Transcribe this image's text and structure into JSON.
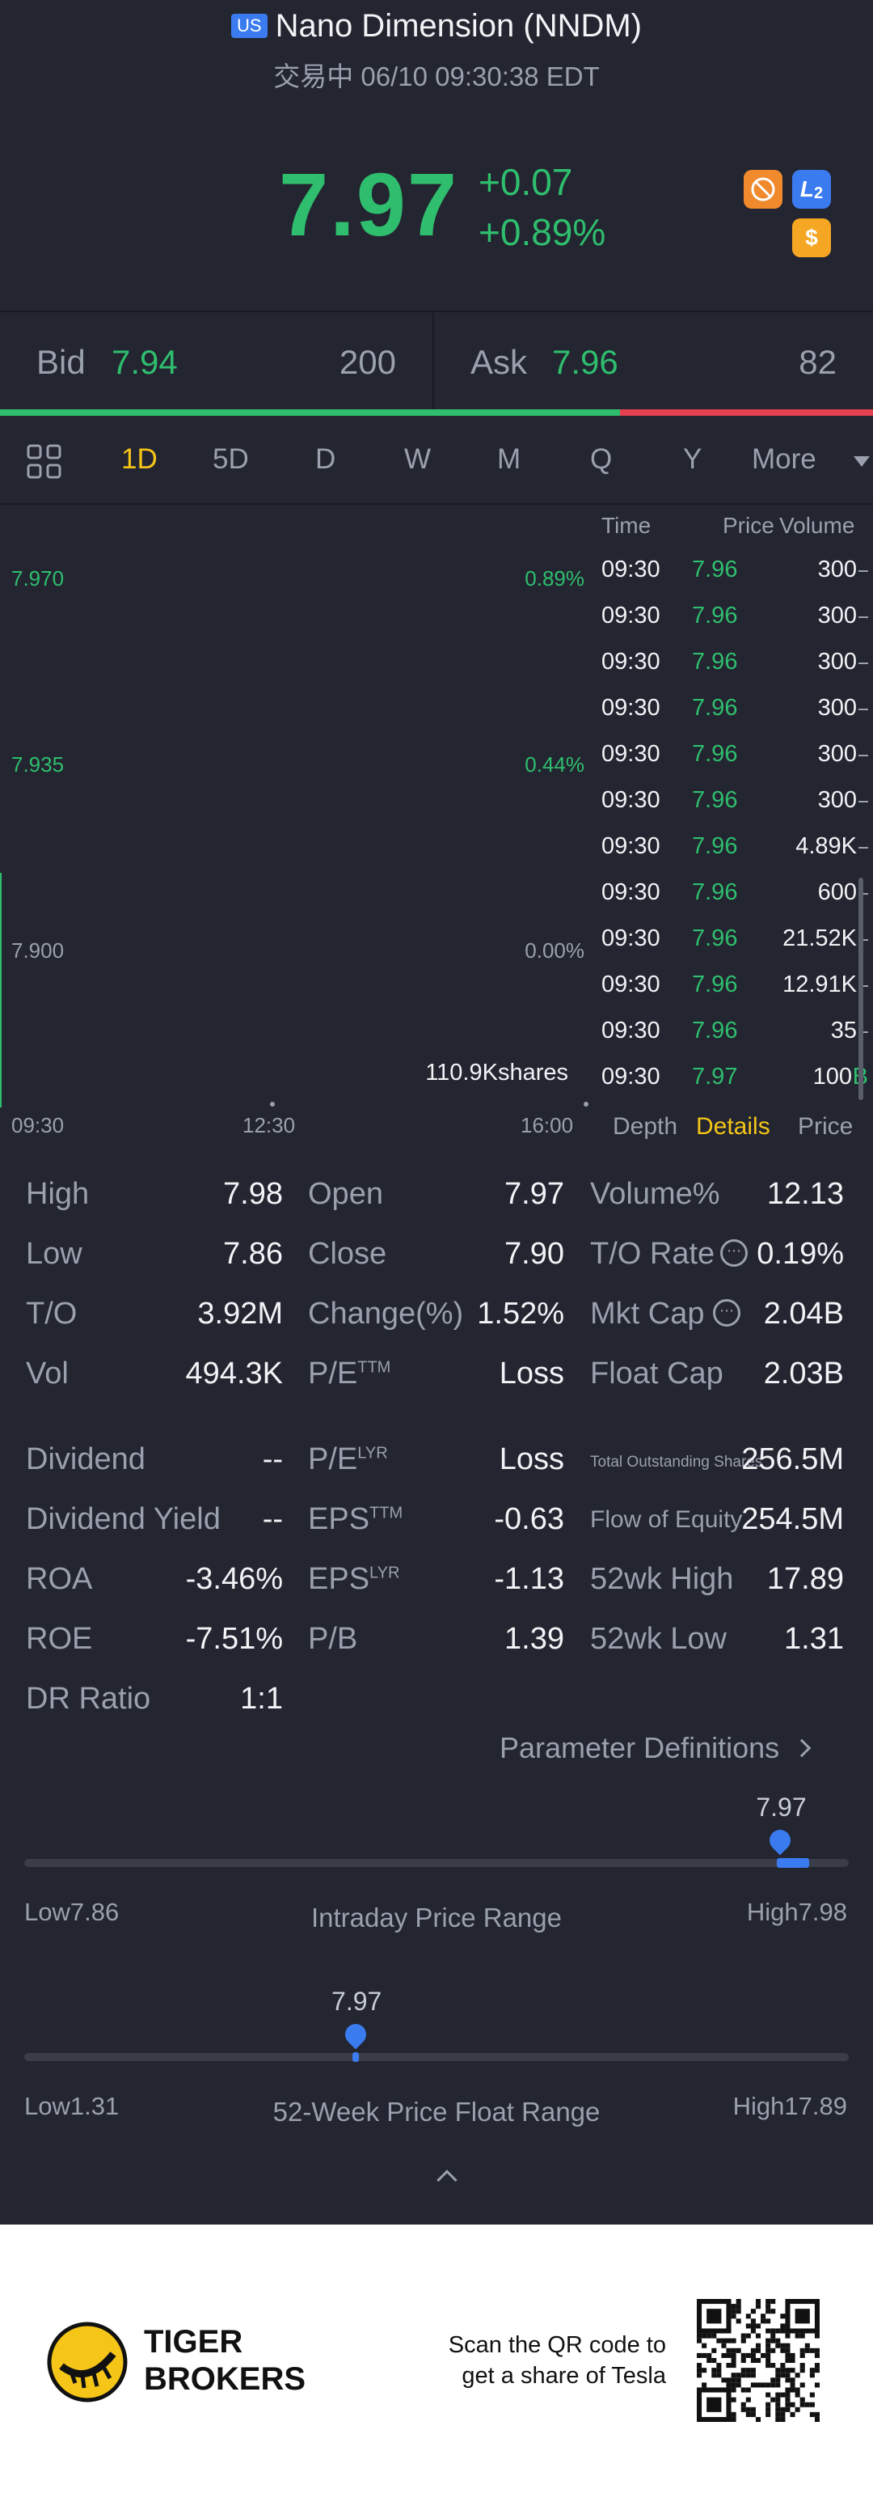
{
  "header": {
    "market_badge": "US",
    "stock_name": "Nano Dimension (NNDM)",
    "status_line": "交易中 06/10 09:30:38 EDT",
    "price": "7.97",
    "change": "+0.07",
    "change_pct": "+0.89%"
  },
  "bid_ask": {
    "bid_label": "Bid",
    "bid_price": "7.94",
    "bid_size": "200",
    "ask_label": "Ask",
    "ask_price": "7.96",
    "ask_size": "82",
    "bid_fraction": 0.71
  },
  "timeframes": [
    "1D",
    "5D",
    "D",
    "W",
    "M",
    "Q",
    "Y",
    "More"
  ],
  "active_timeframe": "1D",
  "chart": {
    "y_labels": [
      "7.970",
      "7.935",
      "7.900"
    ],
    "pct_labels": [
      "0.89%",
      "0.44%",
      "0.00%"
    ],
    "x_labels": [
      "09:30",
      "12:30",
      "16:00"
    ],
    "volume_label": "110.9Kshares"
  },
  "ticks": {
    "headers": {
      "time": "Time",
      "price": "Price",
      "volume": "Volume"
    },
    "rows": [
      {
        "time": "09:30",
        "price": "7.96",
        "volume": "300"
      },
      {
        "time": "09:30",
        "price": "7.96",
        "volume": "300"
      },
      {
        "time": "09:30",
        "price": "7.96",
        "volume": "300"
      },
      {
        "time": "09:30",
        "price": "7.96",
        "volume": "300"
      },
      {
        "time": "09:30",
        "price": "7.96",
        "volume": "300"
      },
      {
        "time": "09:30",
        "price": "7.96",
        "volume": "300"
      },
      {
        "time": "09:30",
        "price": "7.96",
        "volume": "4.89K"
      },
      {
        "time": "09:30",
        "price": "7.96",
        "volume": "600"
      },
      {
        "time": "09:30",
        "price": "7.96",
        "volume": "21.52K"
      },
      {
        "time": "09:30",
        "price": "7.96",
        "volume": "12.91K"
      },
      {
        "time": "09:30",
        "price": "7.96",
        "volume": "35"
      },
      {
        "time": "09:30",
        "price": "7.97",
        "volume": "100",
        "flag": "B"
      }
    ],
    "tabs": [
      "Depth",
      "Details",
      "Price"
    ],
    "active_tab": "Details"
  },
  "stats": {
    "col1": [
      {
        "label": "High",
        "value": "7.98"
      },
      {
        "label": "Low",
        "value": "7.86"
      },
      {
        "label": "T/O",
        "value": "3.92M"
      },
      {
        "label": "Vol",
        "value": "494.3K"
      }
    ],
    "col2": [
      {
        "label": "Open",
        "value": "7.97",
        "sup": ""
      },
      {
        "label": "Close",
        "value": "7.90",
        "sup": ""
      },
      {
        "label": "Change(%)",
        "value": "1.52%",
        "sup": ""
      },
      {
        "label": "P/E",
        "value": "Loss",
        "sup": "TTM"
      }
    ],
    "col3": [
      {
        "label": "Volume%",
        "value": "12.13"
      },
      {
        "label": "T/O Rate",
        "value": "0.19%"
      },
      {
        "label": "Mkt Cap",
        "value": "2.04B"
      },
      {
        "label": "Float Cap",
        "value": "2.03B"
      }
    ],
    "col1b": [
      {
        "label": "Dividend",
        "value": "--"
      },
      {
        "label": "Dividend Yield",
        "value": "--"
      },
      {
        "label": "ROA",
        "value": "-3.46%"
      },
      {
        "label": "ROE",
        "value": "-7.51%"
      },
      {
        "label": "DR Ratio",
        "value": "1:1"
      }
    ],
    "col2b": [
      {
        "label": "P/E",
        "value": "Loss",
        "sup": "LYR"
      },
      {
        "label": "EPS",
        "value": "-0.63",
        "sup": "TTM"
      },
      {
        "label": "EPS",
        "value": "-1.13",
        "sup": "LYR"
      },
      {
        "label": "P/B",
        "value": "1.39",
        "sup": ""
      }
    ],
    "col3b": [
      {
        "label": "Total Outstanding Shares",
        "value": "256.5M"
      },
      {
        "label": "Flow of Equity",
        "value": "254.5M"
      },
      {
        "label": "52wk High",
        "value": "17.89"
      },
      {
        "label": "52wk Low",
        "value": "1.31"
      }
    ],
    "param_link": "Parameter Definitions"
  },
  "ranges": {
    "intraday": {
      "title": "Intraday Price Range",
      "low": "Low7.86",
      "high": "High7.98",
      "current": "7.97",
      "position": 0.917
    },
    "week52": {
      "title": "52-Week Price Float Range",
      "low": "Low1.31",
      "high": "High17.89",
      "current": "7.97",
      "position": 0.402
    }
  },
  "footer": {
    "brand_line1": "TIGER",
    "brand_line2": "BROKERS",
    "promo_line1": "Scan the QR code to",
    "promo_line2": "get a share of Tesla"
  },
  "colors": {
    "up": "#2fbe6e",
    "down": "#e5414f",
    "accent": "#f5c518",
    "blue": "#3a7bf0"
  }
}
